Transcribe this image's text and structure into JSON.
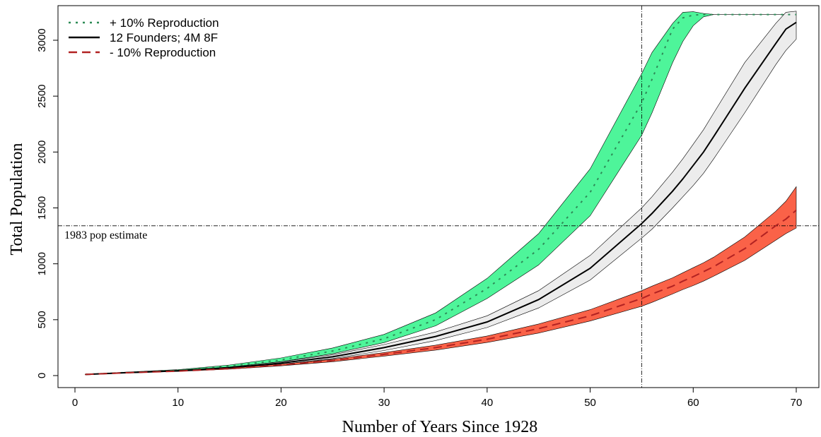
{
  "chart_data": {
    "type": "area",
    "title": "",
    "xlabel": "Number of Years Since 1928",
    "ylabel": "Total Population",
    "xlim": [
      0,
      70
    ],
    "ylim": [
      0,
      3250
    ],
    "xticks": [
      0,
      10,
      20,
      30,
      40,
      50,
      60,
      70
    ],
    "yticks": [
      0,
      500,
      1000,
      1500,
      2000,
      2500,
      3000
    ],
    "legend_position": "top-left",
    "reference_lines": [
      {
        "orientation": "horizontal",
        "value": 1340,
        "label": "1983 pop estimate"
      },
      {
        "orientation": "vertical",
        "value": 55,
        "label": ""
      }
    ],
    "x": [
      1,
      5,
      10,
      15,
      20,
      25,
      30,
      35,
      40,
      45,
      50,
      55,
      56,
      58,
      59,
      60,
      61,
      62,
      65,
      68,
      69,
      70
    ],
    "series": [
      {
        "name": "+ 10% Reproduction",
        "line_style": "dotted",
        "line_color": "#2e8b57",
        "band_color": "#4ef59a",
        "mean": [
          10,
          28,
          48,
          85,
          140,
          220,
          330,
          500,
          780,
          1130,
          1640,
          2440,
          2650,
          3100,
          3200,
          3225,
          3230,
          3230,
          3230,
          3230,
          3230,
          3230
        ],
        "lower": [
          9,
          25,
          43,
          75,
          125,
          195,
          295,
          445,
          690,
          990,
          1430,
          2150,
          2350,
          2800,
          2990,
          3130,
          3210,
          3230,
          3230,
          3230,
          3230,
          3230
        ],
        "upper": [
          12,
          31,
          53,
          95,
          158,
          247,
          368,
          560,
          870,
          1270,
          1850,
          2700,
          2890,
          3150,
          3250,
          3255,
          3240,
          3230,
          3230,
          3230,
          3230,
          3230
        ]
      },
      {
        "name": "12 Founders; 4M 8F",
        "line_style": "solid",
        "line_color": "#000000",
        "band_color": "#ececec",
        "mean": [
          10,
          26,
          43,
          70,
          112,
          168,
          250,
          350,
          480,
          680,
          960,
          1360,
          1450,
          1650,
          1760,
          1880,
          2000,
          2140,
          2570,
          2970,
          3100,
          3160
        ],
        "lower": [
          9,
          24,
          39,
          63,
          101,
          152,
          224,
          313,
          430,
          605,
          855,
          1230,
          1310,
          1500,
          1600,
          1700,
          1810,
          1940,
          2350,
          2780,
          2910,
          3010
        ],
        "upper": [
          11,
          28,
          47,
          77,
          124,
          186,
          278,
          390,
          535,
          760,
          1075,
          1500,
          1600,
          1820,
          1940,
          2070,
          2200,
          2350,
          2800,
          3150,
          3250,
          3260
        ]
      },
      {
        "name": "- 10% Reproduction",
        "line_style": "dashed",
        "line_color": "#b22222",
        "band_color": "#fa6248",
        "mean": [
          10,
          25,
          40,
          62,
          95,
          135,
          190,
          250,
          325,
          420,
          535,
          690,
          730,
          800,
          845,
          885,
          930,
          975,
          1135,
          1340,
          1400,
          1480
        ],
        "lower": [
          9,
          23,
          37,
          57,
          87,
          124,
          174,
          228,
          296,
          380,
          488,
          620,
          655,
          730,
          770,
          805,
          845,
          890,
          1030,
          1210,
          1270,
          1320
        ],
        "upper": [
          11,
          27,
          43,
          67,
          103,
          146,
          206,
          272,
          354,
          462,
          590,
          760,
          800,
          875,
          920,
          965,
          1010,
          1060,
          1240,
          1470,
          1560,
          1690
        ]
      }
    ]
  }
}
